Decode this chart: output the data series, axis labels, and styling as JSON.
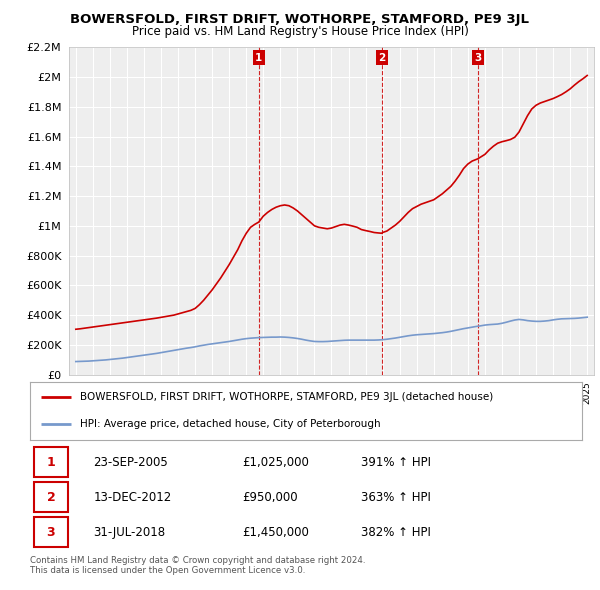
{
  "title": "BOWERSFOLD, FIRST DRIFT, WOTHORPE, STAMFORD, PE9 3JL",
  "subtitle": "Price paid vs. HM Land Registry's House Price Index (HPI)",
  "red_label": "BOWERSFOLD, FIRST DRIFT, WOTHORPE, STAMFORD, PE9 3JL (detached house)",
  "blue_label": "HPI: Average price, detached house, City of Peterborough",
  "footer1": "Contains HM Land Registry data © Crown copyright and database right 2024.",
  "footer2": "This data is licensed under the Open Government Licence v3.0.",
  "sales": [
    {
      "num": 1,
      "date": "23-SEP-2005",
      "price": "£1,025,000",
      "hpi": "391% ↑ HPI",
      "year": 2005.73
    },
    {
      "num": 2,
      "date": "13-DEC-2012",
      "price": "£950,000",
      "hpi": "363% ↑ HPI",
      "year": 2012.95
    },
    {
      "num": 3,
      "date": "31-JUL-2018",
      "price": "£1,450,000",
      "hpi": "382% ↑ HPI",
      "year": 2018.58
    }
  ],
  "red_line_x": [
    1995.0,
    1995.25,
    1995.5,
    1995.75,
    1996.0,
    1996.25,
    1996.5,
    1996.75,
    1997.0,
    1997.25,
    1997.5,
    1997.75,
    1998.0,
    1998.25,
    1998.5,
    1998.75,
    1999.0,
    1999.25,
    1999.5,
    1999.75,
    2000.0,
    2000.25,
    2000.5,
    2000.75,
    2001.0,
    2001.25,
    2001.5,
    2001.75,
    2002.0,
    2002.25,
    2002.5,
    2002.75,
    2003.0,
    2003.25,
    2003.5,
    2003.75,
    2004.0,
    2004.25,
    2004.5,
    2004.75,
    2005.0,
    2005.25,
    2005.5,
    2005.73,
    2006.0,
    2006.25,
    2006.5,
    2006.75,
    2007.0,
    2007.25,
    2007.5,
    2007.75,
    2008.0,
    2008.25,
    2008.5,
    2008.75,
    2009.0,
    2009.25,
    2009.5,
    2009.75,
    2010.0,
    2010.25,
    2010.5,
    2010.75,
    2011.0,
    2011.25,
    2011.5,
    2011.75,
    2012.0,
    2012.25,
    2012.5,
    2012.75,
    2012.95,
    2013.0,
    2013.25,
    2013.5,
    2013.75,
    2014.0,
    2014.25,
    2014.5,
    2014.75,
    2015.0,
    2015.25,
    2015.5,
    2015.75,
    2016.0,
    2016.25,
    2016.5,
    2016.75,
    2017.0,
    2017.25,
    2017.5,
    2017.75,
    2018.0,
    2018.25,
    2018.58,
    2019.0,
    2019.25,
    2019.5,
    2019.75,
    2020.0,
    2020.25,
    2020.5,
    2020.75,
    2021.0,
    2021.25,
    2021.5,
    2021.75,
    2022.0,
    2022.25,
    2022.5,
    2022.75,
    2023.0,
    2023.25,
    2023.5,
    2023.75,
    2024.0,
    2024.25,
    2024.5,
    2024.75,
    2025.0
  ],
  "red_line_y": [
    305000,
    308000,
    312000,
    316000,
    320000,
    324000,
    328000,
    332000,
    336000,
    340000,
    344000,
    348000,
    352000,
    356000,
    360000,
    364000,
    368000,
    372000,
    376000,
    380000,
    385000,
    390000,
    395000,
    400000,
    408000,
    416000,
    424000,
    432000,
    445000,
    470000,
    500000,
    535000,
    570000,
    610000,
    650000,
    695000,
    740000,
    790000,
    840000,
    900000,
    950000,
    990000,
    1010000,
    1025000,
    1065000,
    1090000,
    1110000,
    1125000,
    1135000,
    1140000,
    1135000,
    1120000,
    1100000,
    1075000,
    1050000,
    1025000,
    1000000,
    990000,
    985000,
    980000,
    985000,
    995000,
    1005000,
    1010000,
    1005000,
    998000,
    990000,
    975000,
    968000,
    962000,
    955000,
    952000,
    950000,
    955000,
    965000,
    985000,
    1005000,
    1030000,
    1060000,
    1090000,
    1115000,
    1130000,
    1145000,
    1155000,
    1165000,
    1175000,
    1195000,
    1215000,
    1240000,
    1265000,
    1300000,
    1340000,
    1385000,
    1415000,
    1435000,
    1450000,
    1480000,
    1510000,
    1535000,
    1555000,
    1565000,
    1572000,
    1580000,
    1595000,
    1630000,
    1685000,
    1740000,
    1785000,
    1810000,
    1825000,
    1835000,
    1845000,
    1855000,
    1868000,
    1882000,
    1900000,
    1920000,
    1945000,
    1968000,
    1988000,
    2010000
  ],
  "blue_line_x": [
    1995.0,
    1995.25,
    1995.5,
    1995.75,
    1996.0,
    1996.25,
    1996.5,
    1996.75,
    1997.0,
    1997.25,
    1997.5,
    1997.75,
    1998.0,
    1998.25,
    1998.5,
    1998.75,
    1999.0,
    1999.25,
    1999.5,
    1999.75,
    2000.0,
    2000.25,
    2000.5,
    2000.75,
    2001.0,
    2001.25,
    2001.5,
    2001.75,
    2002.0,
    2002.25,
    2002.5,
    2002.75,
    2003.0,
    2003.25,
    2003.5,
    2003.75,
    2004.0,
    2004.25,
    2004.5,
    2004.75,
    2005.0,
    2005.25,
    2005.5,
    2005.75,
    2006.0,
    2006.25,
    2006.5,
    2006.75,
    2007.0,
    2007.25,
    2007.5,
    2007.75,
    2008.0,
    2008.25,
    2008.5,
    2008.75,
    2009.0,
    2009.25,
    2009.5,
    2009.75,
    2010.0,
    2010.25,
    2010.5,
    2010.75,
    2011.0,
    2011.25,
    2011.5,
    2011.75,
    2012.0,
    2012.25,
    2012.5,
    2012.75,
    2013.0,
    2013.25,
    2013.5,
    2013.75,
    2014.0,
    2014.25,
    2014.5,
    2014.75,
    2015.0,
    2015.25,
    2015.5,
    2015.75,
    2016.0,
    2016.25,
    2016.5,
    2016.75,
    2017.0,
    2017.25,
    2017.5,
    2017.75,
    2018.0,
    2018.25,
    2018.5,
    2018.75,
    2019.0,
    2019.25,
    2019.5,
    2019.75,
    2020.0,
    2020.25,
    2020.5,
    2020.75,
    2021.0,
    2021.25,
    2021.5,
    2021.75,
    2022.0,
    2022.25,
    2022.5,
    2022.75,
    2023.0,
    2023.25,
    2023.5,
    2023.75,
    2024.0,
    2024.25,
    2024.5,
    2024.75,
    2025.0
  ],
  "blue_line_y": [
    88000,
    89000,
    90000,
    91000,
    93000,
    95000,
    97000,
    99000,
    102000,
    105000,
    108000,
    111000,
    115000,
    119000,
    123000,
    127000,
    131000,
    135000,
    139000,
    143000,
    148000,
    153000,
    158000,
    163000,
    168000,
    173000,
    178000,
    182000,
    187000,
    193000,
    198000,
    203000,
    207000,
    211000,
    215000,
    219000,
    223000,
    228000,
    233000,
    238000,
    242000,
    245000,
    247000,
    249000,
    250000,
    251000,
    252000,
    252000,
    253000,
    252000,
    250000,
    247000,
    243000,
    238000,
    232000,
    227000,
    223000,
    222000,
    222000,
    223000,
    225000,
    227000,
    229000,
    231000,
    232000,
    232000,
    232000,
    232000,
    232000,
    232000,
    232000,
    233000,
    235000,
    238000,
    242000,
    246000,
    251000,
    256000,
    261000,
    265000,
    268000,
    270000,
    272000,
    274000,
    276000,
    279000,
    282000,
    286000,
    291000,
    297000,
    303000,
    309000,
    314000,
    319000,
    324000,
    328000,
    333000,
    336000,
    338000,
    340000,
    345000,
    352000,
    360000,
    367000,
    371000,
    368000,
    363000,
    360000,
    358000,
    358000,
    360000,
    363000,
    368000,
    372000,
    375000,
    376000,
    377000,
    378000,
    380000,
    383000,
    386000
  ],
  "ylim": [
    0,
    2200000
  ],
  "xlim": [
    1994.6,
    2025.4
  ],
  "bg_color": "#ffffff",
  "plot_bg_color": "#eeeeee",
  "grid_color": "#ffffff",
  "red_color": "#cc0000",
  "blue_color": "#7799cc",
  "sale_line_color": "#cc0000",
  "sale_marker_color": "#cc0000"
}
